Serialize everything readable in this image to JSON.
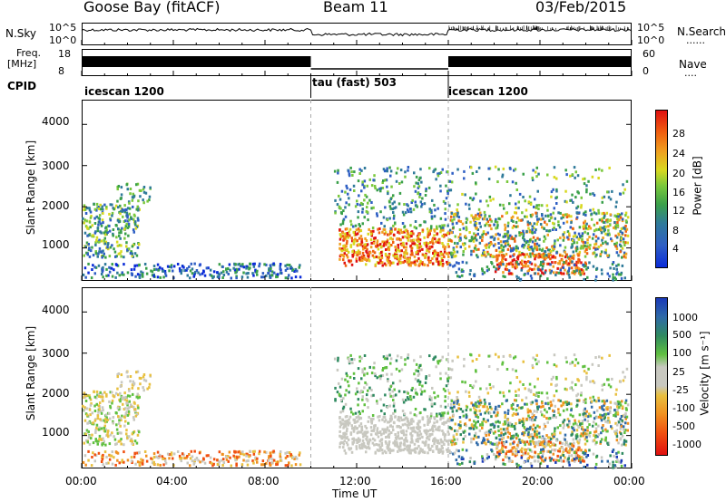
{
  "header": {
    "station": "Goose Bay (fitACF)",
    "beam": "Beam 11",
    "date": "03/Feb/2015"
  },
  "sky_panel": {
    "left_label": "N.Sky",
    "left_ticks": [
      "10^5",
      "10^0"
    ],
    "right_ticks": [
      "10^5",
      "10^0"
    ],
    "right_label": "N.Search",
    "right_mark": "......"
  },
  "freq_panel": {
    "left_label_1": "Freq.",
    "left_label_2": "[MHz]",
    "left_ticks": [
      "18",
      "8"
    ],
    "right_ticks": [
      "60",
      "0"
    ],
    "right_label": "Nave",
    "right_mark": "...."
  },
  "cpid": {
    "label": "CPID",
    "segments": [
      {
        "name": "icescan 1200",
        "start_h": 0,
        "end_h": 10
      },
      {
        "name": "tau (fast) 503",
        "start_h": 10,
        "end_h": 16
      },
      {
        "name": "icescan 1200",
        "start_h": 16,
        "end_h": 24
      }
    ]
  },
  "chart_data": [
    {
      "type": "heatmap",
      "title": "",
      "ylabel": "Slant Range [km]",
      "xlabel": "",
      "xlim": [
        0,
        24
      ],
      "ylim": [
        200,
        4600
      ],
      "y_ticks": [
        "1000",
        "2000",
        "3000",
        "4000"
      ],
      "colorbar": {
        "label": "Power [dB]",
        "ticks": [
          "4",
          "8",
          "12",
          "16",
          "20",
          "24",
          "28"
        ],
        "colors": [
          "#0a2bd8",
          "#2f5fc4",
          "#2f7a9a",
          "#3aa04a",
          "#7ac83c",
          "#d8d820",
          "#f0a020",
          "#f06010",
          "#e01010"
        ],
        "range": [
          0,
          30
        ]
      }
    },
    {
      "type": "heatmap",
      "title": "",
      "ylabel": "Slant Range [km]",
      "xlabel": "Time UT",
      "xlim": [
        0,
        24
      ],
      "ylim": [
        200,
        4600
      ],
      "x_ticks": [
        "00:00",
        "04:00",
        "08:00",
        "12:00",
        "16:00",
        "20:00",
        "00:00"
      ],
      "y_ticks": [
        "1000",
        "2000",
        "3000",
        "4000"
      ],
      "colorbar": {
        "label": "Velocity [m s⁻¹]",
        "ticks": [
          "1000",
          "500",
          "100",
          "25",
          "-25",
          "-100",
          "-500",
          "-1000"
        ],
        "colors": [
          "#1a3ab8",
          "#2f6aa8",
          "#2f8a60",
          "#60c040",
          "#c8c8c0",
          "#e8c040",
          "#f09020",
          "#f05010",
          "#e01010"
        ],
        "range": [
          -1000,
          1000
        ]
      }
    }
  ]
}
